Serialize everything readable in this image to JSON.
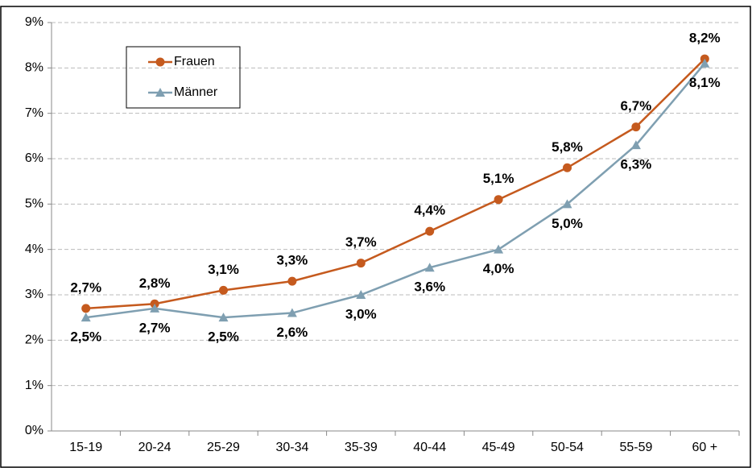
{
  "chart_data": {
    "type": "line",
    "categories": [
      "15-19",
      "20-24",
      "25-29",
      "30-34",
      "35-39",
      "40-44",
      "45-49",
      "50-54",
      "55-59",
      "60 +"
    ],
    "series": [
      {
        "name": "Frauen",
        "color": "#c55a1e",
        "marker": "circle",
        "values": [
          2.7,
          2.8,
          3.1,
          3.3,
          3.7,
          4.4,
          5.1,
          5.8,
          6.7,
          8.2
        ],
        "value_labels": [
          "2,7%",
          "2,8%",
          "3,1%",
          "3,3%",
          "3,7%",
          "4,4%",
          "5,1%",
          "5,8%",
          "6,7%",
          "8,2%"
        ]
      },
      {
        "name": "Männer",
        "color": "#7f9fb1",
        "marker": "triangle",
        "values": [
          2.5,
          2.7,
          2.5,
          2.6,
          3.0,
          3.6,
          4.0,
          5.0,
          6.3,
          8.1
        ],
        "value_labels": [
          "2,5%",
          "2,7%",
          "2,5%",
          "2,6%",
          "3,0%",
          "3,6%",
          "4,0%",
          "5,0%",
          "6,3%",
          "8,1%"
        ]
      }
    ],
    "ylim": [
      0,
      9
    ],
    "yticks": [
      {
        "value": 0,
        "label": "0%"
      },
      {
        "value": 1,
        "label": "1%"
      },
      {
        "value": 2,
        "label": "2%"
      },
      {
        "value": 3,
        "label": "3%"
      },
      {
        "value": 4,
        "label": "4%"
      },
      {
        "value": 5,
        "label": "5%"
      },
      {
        "value": 6,
        "label": "6%"
      },
      {
        "value": 7,
        "label": "7%"
      },
      {
        "value": 8,
        "label": "8%"
      },
      {
        "value": 9,
        "label": "9%"
      }
    ],
    "grid": true,
    "legend": "upper left"
  }
}
